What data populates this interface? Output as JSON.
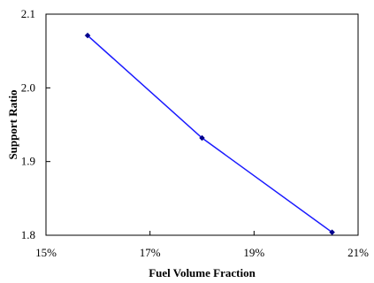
{
  "chart_data": {
    "type": "line",
    "title": "",
    "xlabel": "Fuel Volume Fraction",
    "ylabel": "Support Ratio",
    "xlim": [
      0.15,
      0.21
    ],
    "ylim": [
      1.8,
      2.1
    ],
    "x_ticks": [
      0.15,
      0.17,
      0.19,
      0.21
    ],
    "x_tick_labels": [
      "15%",
      "17%",
      "19%",
      "21%"
    ],
    "y_ticks": [
      1.8,
      1.9,
      2.0,
      2.1
    ],
    "y_tick_labels": [
      "1.8",
      "1.9",
      "2.0",
      "2.1"
    ],
    "grid": false,
    "legend": "none",
    "series": [
      {
        "color": "#1a1aff",
        "marker_color": "#00008b",
        "x": [
          0.158,
          0.18,
          0.205
        ],
        "y": [
          2.071,
          1.932,
          1.804
        ]
      }
    ]
  }
}
